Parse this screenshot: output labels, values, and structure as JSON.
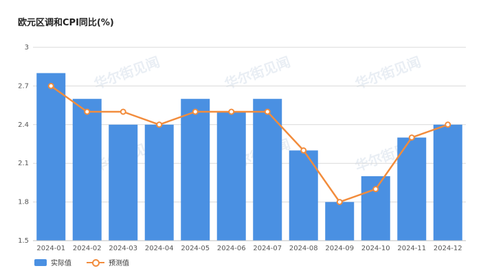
{
  "chart_data": {
    "type": "bar",
    "title": "欧元区调和CPI同比(%)",
    "categories": [
      "2024-01",
      "2024-02",
      "2024-03",
      "2024-04",
      "2024-05",
      "2024-06",
      "2024-07",
      "2024-08",
      "2024-09",
      "2024-10",
      "2024-11",
      "2024-12"
    ],
    "series": [
      {
        "name": "实际值",
        "type": "bar",
        "values": [
          2.8,
          2.6,
          2.4,
          2.4,
          2.6,
          2.5,
          2.6,
          2.2,
          1.8,
          2.0,
          2.3,
          2.4
        ],
        "color": "#4a90e2"
      },
      {
        "name": "预测值",
        "type": "line",
        "values": [
          2.7,
          2.5,
          2.5,
          2.4,
          2.5,
          2.5,
          2.5,
          2.2,
          1.8,
          1.9,
          2.3,
          2.4
        ],
        "color": "#f28c3c"
      }
    ],
    "ylim": [
      1.5,
      3
    ],
    "yticks": [
      "1.5",
      "1.8",
      "2.1",
      "2.4",
      "2.7",
      "3"
    ],
    "grid": true,
    "legend_position": "bottom-left",
    "watermark": "华尔街见闻"
  }
}
